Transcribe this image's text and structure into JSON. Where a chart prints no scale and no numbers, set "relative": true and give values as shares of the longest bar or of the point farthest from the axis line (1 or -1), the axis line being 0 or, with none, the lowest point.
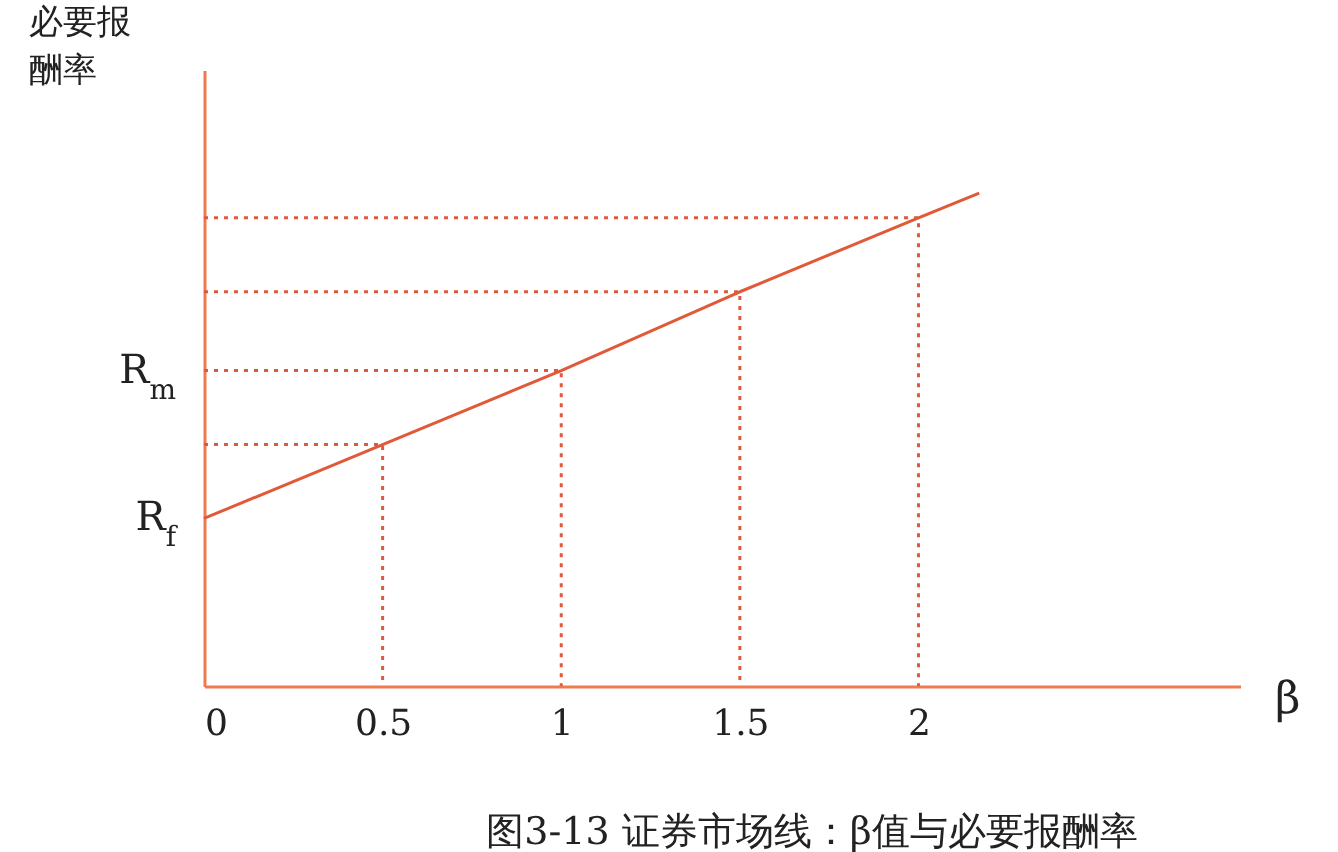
{
  "chart_data": {
    "type": "line",
    "title": "图3-13 证券市场线：β值与必要报酬率",
    "xlabel": "β",
    "ylabel": "必要报酬率",
    "xlim": [
      0,
      2.9
    ],
    "xticks": [
      0,
      0.5,
      1,
      1.5,
      2
    ],
    "relative": true,
    "annotations": [
      {
        "text": "R$_{f}$",
        "x": 0,
        "y": 0.34
      },
      {
        "text": "R$_{m}$",
        "x": 0,
        "y": 0.64
      }
    ],
    "grid": false,
    "marker": "none",
    "series": [
      {
        "color": "#e05a3a",
        "line_style": "solid",
        "x": [
          0,
          0.5,
          1,
          1.5,
          2,
          2.17
        ],
        "values": [
          0.34,
          0.49,
          0.64,
          0.8,
          0.95,
          1
        ]
      },
      {
        "color": "#e05a3a",
        "line_style": "dotted",
        "x": [
          0,
          0.5,
          0.5
        ],
        "values": [
          0.49,
          0.49,
          0
        ]
      },
      {
        "color": "#e05a3a",
        "line_style": "dotted",
        "x": [
          0,
          1,
          1
        ],
        "values": [
          0.64,
          0.64,
          0
        ]
      },
      {
        "color": "#e05a3a",
        "line_style": "dotted",
        "x": [
          0,
          1.5,
          1.5
        ],
        "values": [
          0.8,
          0.8,
          0
        ]
      },
      {
        "color": "#e05a3a",
        "line_style": "dotted",
        "x": [
          0,
          2,
          2
        ],
        "values": [
          0.95,
          0.95,
          0
        ]
      }
    ]
  }
}
